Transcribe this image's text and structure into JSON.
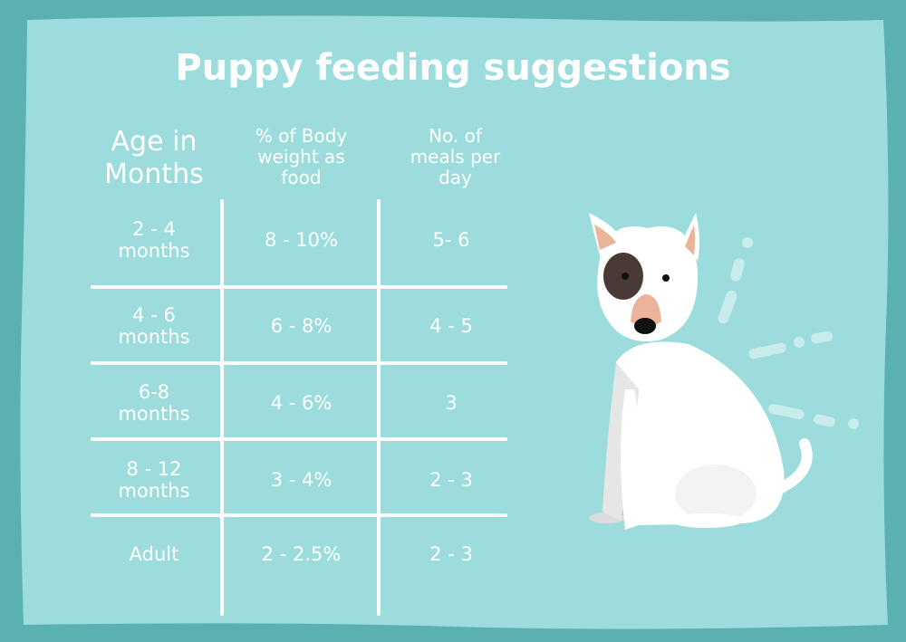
{
  "title": "Puppy feeding suggestions",
  "table": {
    "headers": [
      "Age in Months",
      "% of Body weight as food",
      "No. of meals per day"
    ],
    "rows": [
      [
        "2 - 4 months",
        "8 - 10%",
        "5- 6"
      ],
      [
        "4 - 6 months",
        "6 - 8%",
        "4 - 5"
      ],
      [
        "6-8 months",
        "4 - 6%",
        "3"
      ],
      [
        "8 - 12 months",
        "3 - 4%",
        "2 - 3"
      ],
      [
        "Adult",
        "2 - 2.5%",
        "2 - 3"
      ]
    ]
  }
}
